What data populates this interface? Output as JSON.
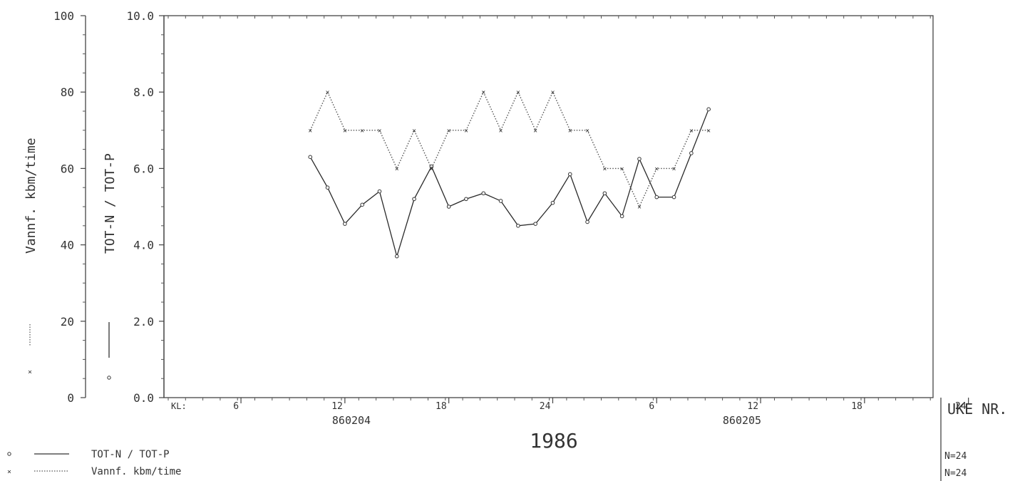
{
  "chart_data": {
    "type": "line",
    "year_label": "1986",
    "x_axis_label": "UKE NR.",
    "x_prefix_label": "KL:",
    "x_tick_labels": [
      "6",
      "12",
      "18",
      "24",
      "6",
      "12",
      "18",
      "24"
    ],
    "date_labels": [
      "860204",
      "860205"
    ],
    "left_axis": {
      "label": "Vannf. kbm/time",
      "ylim": [
        0,
        100
      ],
      "ticks": [
        "0",
        "20",
        "40",
        "60",
        "80",
        "100"
      ]
    },
    "right_axis": {
      "label": "TOT-N / TOT-P",
      "ylim": [
        0,
        10
      ],
      "ticks": [
        "0.0",
        "2.0",
        "4.0",
        "6.0",
        "8.0",
        "10.0"
      ]
    },
    "x": [
      10,
      11,
      12,
      13,
      14,
      15,
      16,
      17,
      18,
      19,
      20,
      21,
      22,
      23,
      24,
      25,
      26,
      27,
      28,
      29,
      30,
      31,
      32,
      33
    ],
    "series": [
      {
        "name": "TOT-N / TOT-P",
        "axis": "right",
        "style": "solid",
        "marker": "circle",
        "values": [
          6.3,
          5.5,
          4.55,
          5.05,
          5.4,
          3.7,
          5.2,
          6.05,
          5.0,
          5.2,
          5.35,
          5.15,
          4.5,
          4.55,
          5.1,
          5.85,
          4.6,
          5.35,
          4.75,
          6.25,
          5.25,
          5.25,
          6.4,
          7.55
        ]
      },
      {
        "name": "Vannf. kbm/time",
        "axis": "left",
        "style": "dotted",
        "marker": "x",
        "values": [
          70,
          80,
          70,
          70,
          70,
          60,
          70,
          60,
          70,
          70,
          80,
          70,
          80,
          70,
          80,
          70,
          70,
          60,
          60,
          50,
          60,
          60,
          70,
          70
        ]
      }
    ],
    "legend": {
      "placement": "bottom-left",
      "entries": [
        {
          "label": "TOT-N / TOT-P",
          "n_label": "N=24"
        },
        {
          "label": "Vannf. kbm/time",
          "n_label": "N=24"
        }
      ]
    },
    "grid": false
  }
}
